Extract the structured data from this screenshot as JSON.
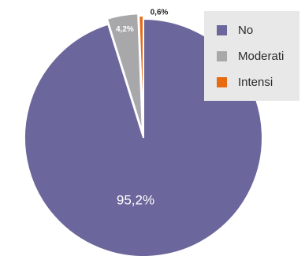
{
  "chart_data": {
    "type": "pie",
    "title": "",
    "slices": [
      {
        "label": "No",
        "value": 95.2,
        "display": "95,2%",
        "color": "#6b669b"
      },
      {
        "label": "Moderati",
        "value": 4.2,
        "display": "4,2%",
        "color": "#a8a8aa"
      },
      {
        "label": "Intensi",
        "value": 0.6,
        "display": "0,6%",
        "color": "#e86a10"
      }
    ],
    "legend_position": "top-right"
  }
}
